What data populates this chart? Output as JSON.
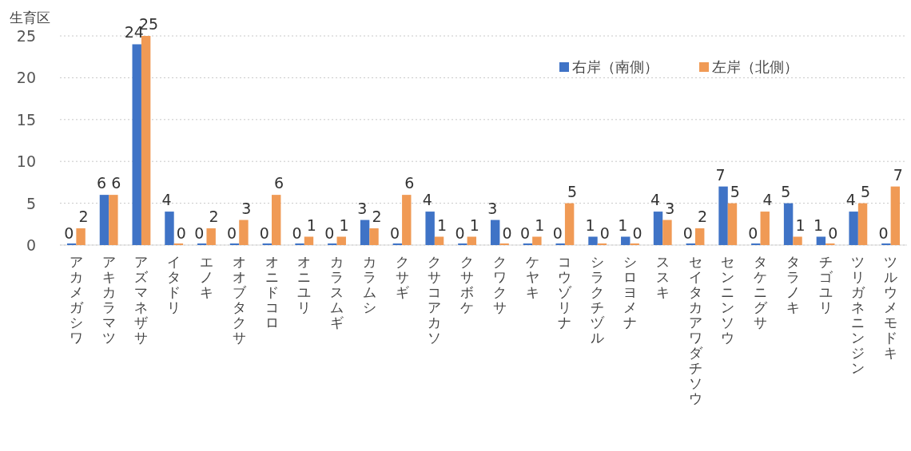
{
  "chart_data": {
    "type": "bar",
    "ylabel": "生育区",
    "categories": [
      "アカメガシワ",
      "アキカラマツ",
      "アズマネザサ",
      "イタドリ",
      "エノキ",
      "オオブタクサ",
      "オニドコロ",
      "オニユリ",
      "カラスムギ",
      "カラムシ",
      "クサギ",
      "クサコアカソ",
      "クサボケ",
      "クワクサ",
      "ケヤキ",
      "コウゾリナ",
      "シラクチヅル",
      "シロヨメナ",
      "ススキ",
      "セイタカアワダチソウ",
      "センニンソウ",
      "タケニグサ",
      "タラノキ",
      "チゴユリ",
      "ツリガネニンジン",
      "ツルウメモドキ"
    ],
    "series": [
      {
        "name": "右岸（南側）",
        "color": "#3f73c6",
        "values": [
          0,
          6,
          24,
          4,
          0,
          0,
          0,
          0,
          0,
          3,
          0,
          4,
          0,
          3,
          0,
          0,
          1,
          1,
          4,
          0,
          7,
          0,
          5,
          1,
          4,
          0
        ]
      },
      {
        "name": "左岸（北側）",
        "color": "#f09a55",
        "values": [
          2,
          6,
          25,
          0,
          2,
          3,
          6,
          1,
          1,
          2,
          6,
          1,
          1,
          0,
          1,
          5,
          0,
          0,
          3,
          2,
          5,
          4,
          1,
          0,
          5,
          7
        ]
      }
    ],
    "ylim": [
      0,
      25
    ],
    "yticks": [
      0,
      5,
      10,
      15,
      20,
      25
    ],
    "grid": "y",
    "legend": "top right",
    "data_labels": true
  }
}
